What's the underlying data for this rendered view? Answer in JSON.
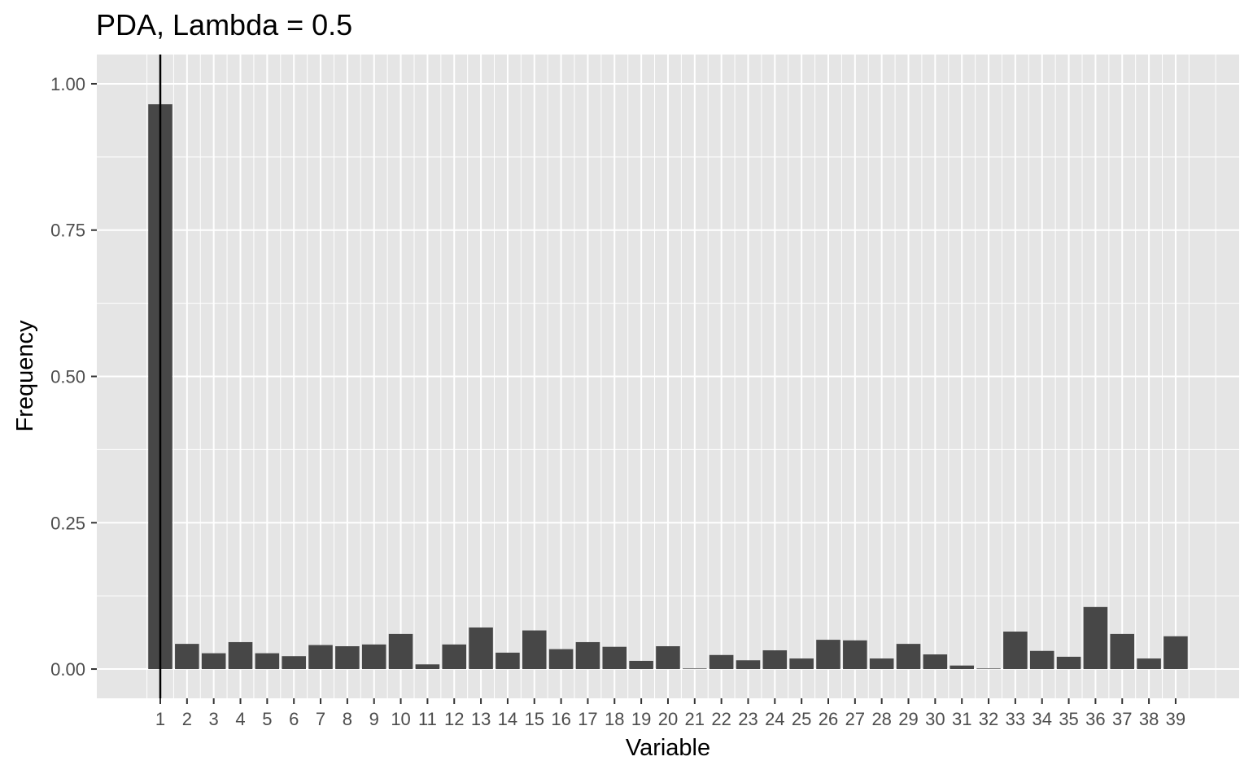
{
  "chart_data": {
    "type": "bar",
    "title": "PDA, Lambda = 0.5",
    "xlabel": "Variable",
    "ylabel": "Frequency",
    "categories": [
      "1",
      "2",
      "3",
      "4",
      "5",
      "6",
      "7",
      "8",
      "9",
      "10",
      "11",
      "12",
      "13",
      "14",
      "15",
      "16",
      "17",
      "18",
      "19",
      "20",
      "21",
      "22",
      "23",
      "24",
      "25",
      "26",
      "27",
      "28",
      "29",
      "30",
      "31",
      "32",
      "33",
      "34",
      "35",
      "36",
      "37",
      "38",
      "39"
    ],
    "values": [
      0.965,
      0.043,
      0.027,
      0.046,
      0.027,
      0.022,
      0.041,
      0.039,
      0.042,
      0.06,
      0.008,
      0.042,
      0.071,
      0.028,
      0.066,
      0.034,
      0.046,
      0.038,
      0.014,
      0.039,
      0.001,
      0.024,
      0.015,
      0.032,
      0.018,
      0.05,
      0.049,
      0.018,
      0.043,
      0.025,
      0.006,
      0.001,
      0.064,
      0.031,
      0.021,
      0.106,
      0.06,
      0.018,
      0.056
    ],
    "ylim": [
      -0.05,
      1.05
    ],
    "y_ticks": [
      0.0,
      0.25,
      0.5,
      0.75,
      1.0
    ],
    "y_tick_labels": [
      "0.00",
      "0.25",
      "0.50",
      "0.75",
      "1.00"
    ],
    "reference_line_x": 1,
    "grid": true,
    "colors": {
      "bar": "#474747",
      "panel": "#e5e5e5",
      "grid": "#ffffff",
      "reference_line": "#000000",
      "tick_label": "#4d4d4d"
    }
  }
}
